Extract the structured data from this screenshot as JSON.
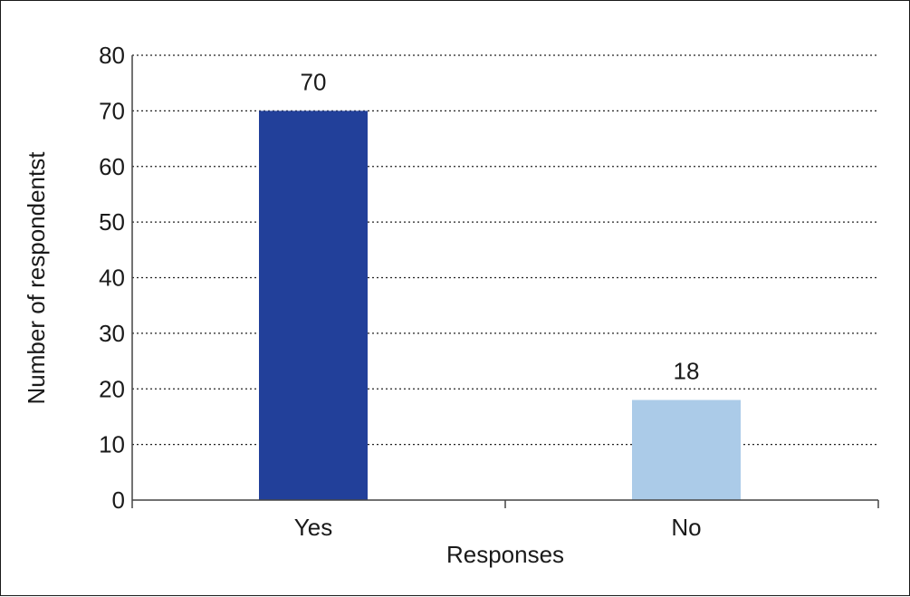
{
  "chart_data": {
    "type": "bar",
    "categories": [
      "Yes",
      "No"
    ],
    "values": [
      70,
      18
    ],
    "data_labels": [
      "70",
      "18"
    ],
    "title": "",
    "xlabel": "Responses",
    "ylabel": "Number of respondentst",
    "ylim": [
      0,
      80
    ],
    "yticks": [
      "0",
      "10",
      "20",
      "30",
      "40",
      "50",
      "60",
      "70",
      "80"
    ],
    "grid": true,
    "bar_colors": [
      "#22409a",
      "#abcbe8"
    ],
    "text_color": "#1a1a1a"
  }
}
